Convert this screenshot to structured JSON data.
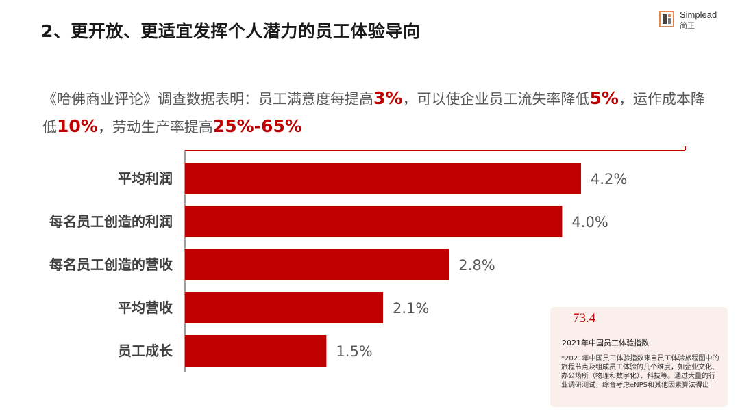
{
  "page": {
    "title": "2、更开放、更适宜发挥个人潜力的员工体验导向",
    "brand": {
      "name_en": "Simplead",
      "name_cn": "简正"
    }
  },
  "intro": {
    "segments": [
      {
        "text": "《哈佛商业评论》调查数据表明：员工满意度每提高",
        "highlight": false
      },
      {
        "text": "3%",
        "highlight": true
      },
      {
        "text": "，可以使企业员工流失率降低",
        "highlight": false
      },
      {
        "text": "5%",
        "highlight": true
      },
      {
        "text": "，运作成本降低",
        "highlight": false
      },
      {
        "text": "10%",
        "highlight": true
      },
      {
        "text": "，劳动生产率提高",
        "highlight": false
      },
      {
        "text": "25%-65%",
        "highlight": true
      }
    ],
    "accent_color": "#c00000"
  },
  "chart_data": {
    "type": "bar",
    "orientation": "horizontal",
    "categories": [
      "平均利润",
      "每名员工创造的利润",
      "每名员工创造的营收",
      "平均营收",
      "员工成长"
    ],
    "values": [
      4.2,
      4.0,
      2.8,
      2.1,
      1.5
    ],
    "value_labels": [
      "4.2%",
      "4.0%",
      "2.8%",
      "2.1%",
      "1.5%"
    ],
    "xlim": [
      0,
      4.6
    ],
    "bar_color": "#c00000",
    "grid": false,
    "legend": "none"
  },
  "info_card": {
    "metric": "73.4",
    "caption": "2021年中国员工体验指数",
    "note": "*2021年中国员工体验指数来自员工体验旅程图中的旅程节点及组成员工体验的几个维度，如企业文化、办公场所（物理和数字化）、科技等。通过大量的行业调研测试，综合考虑eNPS和其他因素算法得出"
  }
}
